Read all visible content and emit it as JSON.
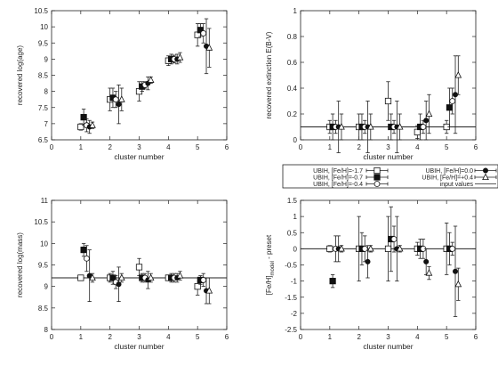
{
  "chart_data": [
    {
      "type": "scatter",
      "id": "age",
      "xlabel": "cluster number",
      "ylabel": "recovered log(age)",
      "xlim": [
        0,
        6
      ],
      "ylim": [
        6.5,
        10.5
      ],
      "xticks": [
        "0",
        "1",
        "2",
        "3",
        "4",
        "5",
        "6"
      ],
      "yticks": [
        "6.5",
        "7",
        "7.5",
        "8",
        "8.5",
        "9",
        "9.5",
        "10",
        "10.5"
      ],
      "grid": false,
      "series": [
        {
          "style": "open-square",
          "x": [
            1,
            2,
            3,
            4,
            5
          ],
          "y": [
            6.9,
            7.75,
            8.0,
            8.95,
            9.75
          ],
          "err": [
            0.1,
            0.35,
            0.3,
            0.15,
            0.35
          ]
        },
        {
          "style": "filled-square",
          "x": [
            1.1,
            2.1,
            3.1,
            4.1,
            5.1
          ],
          "y": [
            7.2,
            7.8,
            8.15,
            9.0,
            9.9
          ],
          "err": [
            0.25,
            0.3,
            0.15,
            0.15,
            0.2
          ]
        },
        {
          "style": "open-circle",
          "x": [
            1.2,
            2.2,
            3.2,
            4.2,
            5.2
          ],
          "y": [
            6.95,
            7.75,
            8.2,
            9.0,
            9.8
          ],
          "err": [
            0.2,
            0.25,
            0.1,
            0.12,
            0.3
          ]
        },
        {
          "style": "filled-circle",
          "x": [
            1.3,
            2.3,
            3.3,
            4.3,
            5.3
          ],
          "y": [
            6.9,
            7.6,
            8.25,
            9.0,
            9.4
          ],
          "err": [
            0.2,
            0.6,
            0.2,
            0.15,
            0.85
          ]
        },
        {
          "style": "open-triangle",
          "x": [
            1.4,
            2.4,
            3.4,
            4.4,
            5.4
          ],
          "y": [
            6.95,
            7.75,
            8.35,
            9.05,
            9.35
          ],
          "err": [
            0.1,
            0.35,
            0.1,
            0.15,
            0.6
          ]
        }
      ]
    },
    {
      "type": "scatter",
      "id": "extinction",
      "xlabel": "cluster number",
      "ylabel": "recovered extinction E(B-V)",
      "xlim": [
        0,
        6
      ],
      "ylim": [
        0,
        1
      ],
      "xticks": [
        "0",
        "1",
        "2",
        "3",
        "4",
        "5",
        "6"
      ],
      "yticks": [
        "0",
        "0.2",
        "0.4",
        "0.6",
        "0.8",
        "1"
      ],
      "reference_line": 0.1,
      "grid": false,
      "series": [
        {
          "style": "open-square",
          "x": [
            1,
            2,
            3,
            4,
            5
          ],
          "y": [
            0.1,
            0.1,
            0.3,
            0.06,
            0.1
          ],
          "err": [
            0.05,
            0.1,
            0.15,
            0.05,
            0.05
          ]
        },
        {
          "style": "filled-square",
          "x": [
            1.1,
            2.1,
            3.1,
            4.1,
            5.1
          ],
          "y": [
            0.1,
            0.1,
            0.1,
            0.1,
            0.25
          ],
          "err": [
            0.1,
            0.1,
            0.1,
            0.1,
            0.15
          ]
        },
        {
          "style": "open-circle",
          "x": [
            1.2,
            2.2,
            3.2,
            4.2,
            5.2
          ],
          "y": [
            0.1,
            0.1,
            0.1,
            0.1,
            0.3
          ],
          "err": [
            0.05,
            0.05,
            0.05,
            0.05,
            0.1
          ]
        },
        {
          "style": "filled-circle",
          "x": [
            1.3,
            2.3,
            3.3,
            4.3,
            5.3
          ],
          "y": [
            0.1,
            0.1,
            0.1,
            0.15,
            0.35
          ],
          "err": [
            0.2,
            0.2,
            0.2,
            0.15,
            0.3
          ]
        },
        {
          "style": "open-triangle",
          "x": [
            1.4,
            2.4,
            3.4,
            4.4,
            5.4
          ],
          "y": [
            0.1,
            0.1,
            0.1,
            0.2,
            0.5
          ],
          "err": [
            0.1,
            0.1,
            0.1,
            0.15,
            0.15
          ]
        }
      ]
    },
    {
      "type": "scatter",
      "id": "mass",
      "xlabel": "cluster number",
      "ylabel": "recovered log(mass)",
      "xlim": [
        0,
        6
      ],
      "ylim": [
        8,
        11
      ],
      "xticks": [
        "0",
        "1",
        "2",
        "3",
        "4",
        "5",
        "6"
      ],
      "yticks": [
        "8",
        "8.5",
        "9",
        "9.5",
        "10",
        "10.5",
        "11"
      ],
      "reference_line": 9.2,
      "grid": false,
      "series": [
        {
          "style": "open-square",
          "x": [
            1,
            2,
            3,
            4,
            5
          ],
          "y": [
            9.2,
            9.2,
            9.45,
            9.2,
            9.0
          ],
          "err": [
            0.05,
            0.1,
            0.2,
            0.05,
            0.2
          ]
        },
        {
          "style": "filled-square",
          "x": [
            1.1,
            2.1,
            3.1,
            4.1,
            5.1
          ],
          "y": [
            9.85,
            9.2,
            9.2,
            9.2,
            9.15
          ],
          "err": [
            0.15,
            0.15,
            0.1,
            0.1,
            0.1
          ]
        },
        {
          "style": "open-circle",
          "x": [
            1.2,
            2.2,
            3.2,
            4.2,
            5.2
          ],
          "y": [
            9.65,
            9.1,
            9.2,
            9.2,
            9.15
          ],
          "err": [
            0.3,
            0.15,
            0.1,
            0.1,
            0.15
          ]
        },
        {
          "style": "filled-circle",
          "x": [
            1.3,
            2.3,
            3.3,
            4.3,
            5.3
          ],
          "y": [
            9.25,
            9.05,
            9.15,
            9.2,
            8.9
          ],
          "err": [
            0.6,
            0.4,
            0.2,
            0.1,
            0.3
          ]
        },
        {
          "style": "open-triangle",
          "x": [
            1.4,
            2.4,
            3.4,
            4.4,
            5.4
          ],
          "y": [
            9.2,
            9.2,
            9.2,
            9.25,
            8.9
          ],
          "err": [
            0.1,
            0.1,
            0.1,
            0.1,
            0.3
          ]
        }
      ]
    },
    {
      "type": "scatter",
      "id": "feh",
      "xlabel": "cluster number",
      "ylabel": "[Fe/H]",
      "ylabel_sub": "model",
      "ylabel_tail": " - preset",
      "xlim": [
        0,
        6
      ],
      "ylim": [
        -2.5,
        1.5
      ],
      "xticks": [
        "0",
        "1",
        "2",
        "3",
        "4",
        "5",
        "6"
      ],
      "yticks": [
        "-2.5",
        "-2",
        "-1.5",
        "-1",
        "-0.5",
        "0",
        "0.5",
        "1",
        "1.5"
      ],
      "reference_line": 0,
      "grid": false,
      "series": [
        {
          "style": "open-square",
          "x": [
            1,
            2,
            3,
            4,
            5
          ],
          "y": [
            0,
            0,
            0,
            0,
            0
          ],
          "err": [
            0.1,
            1.0,
            1.0,
            0.2,
            0.8
          ]
        },
        {
          "style": "filled-square",
          "x": [
            1.1,
            2.1,
            3.1,
            4.1,
            5.1
          ],
          "y": [
            -1.0,
            0,
            0.3,
            0,
            0
          ],
          "err": [
            0.2,
            0.5,
            1.0,
            0.3,
            0.5
          ]
        },
        {
          "style": "open-circle",
          "x": [
            1.2,
            2.2,
            3.2,
            4.2,
            5.2
          ],
          "y": [
            0,
            0,
            0.3,
            0,
            0
          ],
          "err": [
            0.4,
            0.4,
            0.4,
            0.3,
            0.2
          ]
        },
        {
          "style": "filled-circle",
          "x": [
            1.3,
            2.3,
            3.3,
            4.3,
            5.3
          ],
          "y": [
            0,
            -0.4,
            0,
            -0.4,
            -0.7
          ],
          "err": [
            0.4,
            0.5,
            1.0,
            0.4,
            1.4
          ]
        },
        {
          "style": "open-triangle",
          "x": [
            1.4,
            2.4,
            3.4,
            4.4,
            5.4
          ],
          "y": [
            0,
            0,
            0,
            -0.75,
            -1.1
          ],
          "err": [
            0.1,
            0.1,
            0.1,
            0.2,
            0.5
          ]
        }
      ]
    }
  ],
  "legend": {
    "placement": "center-right",
    "entries": [
      {
        "style": "open-square",
        "label": "UBIH, [Fe/H]=-1.7"
      },
      {
        "style": "filled-square",
        "label": "UBIH, [Fe/H]=-0.7"
      },
      {
        "style": "open-circle",
        "label": "UBIH, [Fe/H]=-0.4"
      },
      {
        "style": "filled-circle",
        "label": "UBIH, [Fe/H]=0.0"
      },
      {
        "style": "open-triangle",
        "label": "UBIH, [Fe/H]=+0.4"
      },
      {
        "style": "line",
        "label": "input values"
      }
    ]
  }
}
